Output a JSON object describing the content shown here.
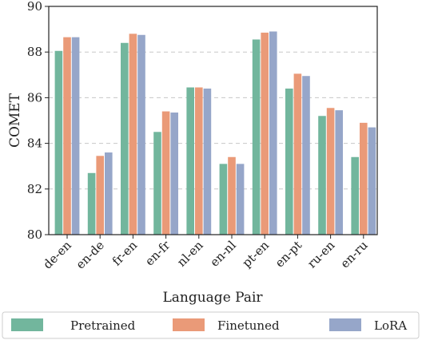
{
  "chart_data": {
    "type": "bar",
    "xlabel": "Language Pair",
    "ylabel": "COMET",
    "ylim": [
      80,
      90
    ],
    "yticks": [
      80,
      82,
      84,
      86,
      88,
      90
    ],
    "grid": "horizontal-dashed",
    "legend_placement": "bottom",
    "categories": [
      "de-en",
      "en-de",
      "fr-en",
      "en-fr",
      "nl-en",
      "en-nl",
      "pt-en",
      "en-pt",
      "ru-en",
      "en-ru"
    ],
    "series": [
      {
        "name": "Pretrained",
        "color": "#72b69d",
        "values": [
          88.05,
          82.7,
          88.4,
          84.5,
          86.45,
          83.1,
          88.55,
          86.4,
          85.2,
          83.4
        ]
      },
      {
        "name": "Finetuned",
        "color": "#ea9a78",
        "values": [
          88.65,
          83.45,
          88.8,
          85.4,
          86.45,
          83.4,
          88.85,
          87.05,
          85.55,
          84.9
        ]
      },
      {
        "name": "LoRA",
        "color": "#96a6c9",
        "values": [
          88.65,
          83.6,
          88.75,
          85.35,
          86.4,
          83.1,
          88.9,
          86.95,
          85.45,
          84.7
        ]
      }
    ]
  }
}
